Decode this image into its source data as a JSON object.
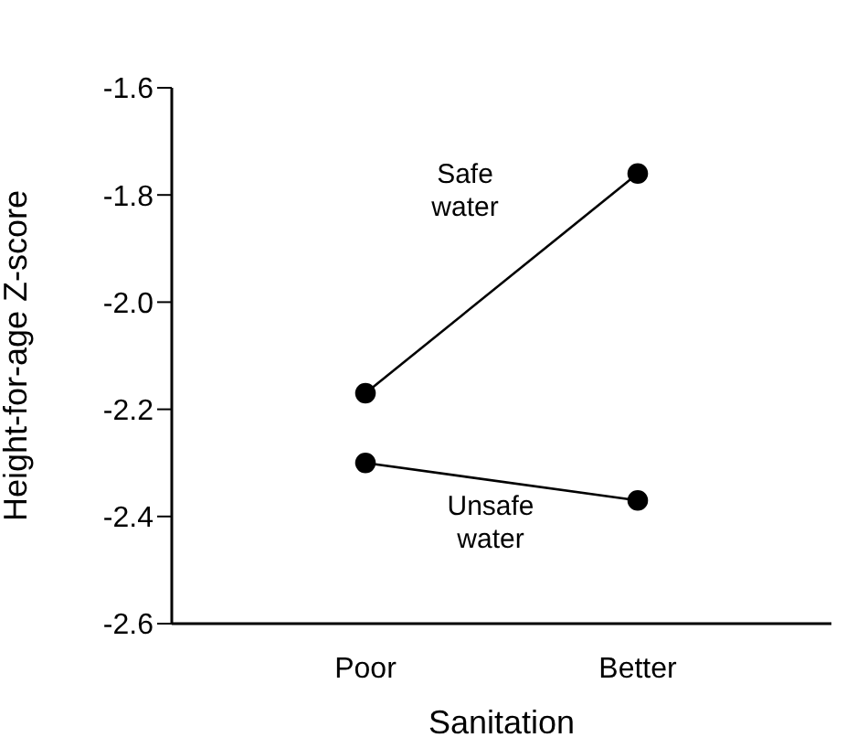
{
  "chart_data": {
    "type": "line",
    "xlabel": "Sanitation",
    "ylabel": "Height-for-age Z-score",
    "categories": [
      "Poor",
      "Better"
    ],
    "series": [
      {
        "name": "Safe water",
        "color": "#000000",
        "values": [
          -2.17,
          -1.76
        ]
      },
      {
        "name": "Unsafe water",
        "color": "#000000",
        "values": [
          -2.3,
          -2.37
        ]
      }
    ],
    "ylim": [
      -2.6,
      -1.6
    ],
    "yticks": [
      -2.6,
      -2.4,
      -2.2,
      {
        "value": -2,
        "label": "-2.0"
      },
      -1.8,
      -1.6
    ],
    "grid": false,
    "legend": false,
    "marker": "circle",
    "line_style": "solid"
  }
}
